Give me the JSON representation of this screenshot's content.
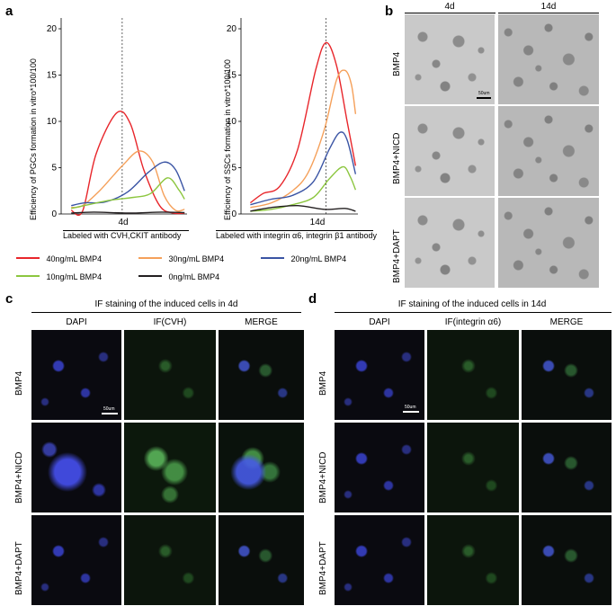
{
  "panels": {
    "a": "a",
    "b": "b",
    "c": "c",
    "d": "d"
  },
  "chart_data": [
    {
      "type": "line",
      "ylabel": "Efficiency of PGCs formation in vitro*100/100",
      "xlabel": "4d",
      "subtitle": "Labeled with CVH,CKIT antibody",
      "ylim": [
        0,
        20
      ],
      "yticks": [
        "0",
        "5",
        "10",
        "15",
        "20"
      ],
      "grid": false,
      "series": [
        {
          "name": "40ng/mL BMP4",
          "color": "#e8262b",
          "x": [
            0,
            0.1,
            0.22,
            0.4,
            0.52,
            0.64,
            0.78,
            0.9,
            1
          ],
          "values": [
            0.4,
            0.3,
            6.5,
            10.9,
            9.8,
            4.8,
            0.9,
            0.1,
            0.1
          ]
        },
        {
          "name": "30ng/mL BMP4",
          "color": "#f5a05a",
          "x": [
            0,
            0.1,
            0.25,
            0.45,
            0.6,
            0.72,
            0.82,
            0.92,
            1
          ],
          "values": [
            0.7,
            0.9,
            2.5,
            5.2,
            6.8,
            5.6,
            2.0,
            0.4,
            0.5
          ]
        },
        {
          "name": "20ng/mL BMP4",
          "color": "#3a54a4",
          "x": [
            0,
            0.12,
            0.3,
            0.5,
            0.68,
            0.82,
            0.92,
            1
          ],
          "values": [
            0.9,
            1.2,
            1.3,
            2.4,
            4.5,
            5.6,
            4.8,
            2.5
          ]
        },
        {
          "name": "10ng/mL BMP4",
          "color": "#8cc63f",
          "x": [
            0,
            0.15,
            0.35,
            0.55,
            0.7,
            0.85,
            0.95,
            1
          ],
          "values": [
            0.6,
            1.0,
            1.5,
            1.8,
            2.2,
            3.9,
            2.6,
            1.6
          ]
        },
        {
          "name": "0ng/mL BMP4",
          "color": "#231f20",
          "x": [
            0,
            0.2,
            0.5,
            0.8,
            1
          ],
          "values": [
            0.1,
            0.2,
            0.1,
            0.2,
            0.15
          ]
        }
      ],
      "vline": 0.45
    },
    {
      "type": "line",
      "ylabel": "Efficiency of SSCs formation in vitro*100/100",
      "xlabel": "14d",
      "subtitle": "Labeled with integrin α6, integrin β1 antibody",
      "ylim": [
        0,
        20
      ],
      "yticks": [
        "0",
        "5",
        "10",
        "15",
        "20"
      ],
      "grid": false,
      "series": [
        {
          "name": "40ng/mL BMP4",
          "color": "#e8262b",
          "x": [
            0,
            0.12,
            0.28,
            0.45,
            0.62,
            0.72,
            0.82,
            0.92,
            1
          ],
          "values": [
            1.2,
            2.2,
            3.0,
            7.0,
            15.5,
            18.5,
            16.0,
            10.0,
            5.2
          ]
        },
        {
          "name": "30ng/mL BMP4",
          "color": "#f5a05a",
          "x": [
            0,
            0.2,
            0.4,
            0.55,
            0.7,
            0.82,
            0.9,
            0.96,
            1
          ],
          "values": [
            0.7,
            1.2,
            2.5,
            4.5,
            9.0,
            14.5,
            15.5,
            14.0,
            10.8
          ]
        },
        {
          "name": "20ng/mL BMP4",
          "color": "#3a54a4",
          "x": [
            0,
            0.2,
            0.4,
            0.6,
            0.75,
            0.85,
            0.92,
            1
          ],
          "values": [
            1.0,
            1.6,
            2.0,
            3.5,
            7.0,
            8.8,
            8.0,
            4.3
          ]
        },
        {
          "name": "10ng/mL BMP4",
          "color": "#8cc63f",
          "x": [
            0,
            0.2,
            0.4,
            0.6,
            0.75,
            0.88,
            0.95,
            1
          ],
          "values": [
            0.3,
            0.5,
            1.0,
            1.8,
            3.8,
            5.1,
            4.0,
            2.6
          ]
        },
        {
          "name": "0ng/mL BMP4",
          "color": "#231f20",
          "x": [
            0,
            0.2,
            0.45,
            0.7,
            0.9,
            1
          ],
          "values": [
            0.3,
            0.7,
            0.9,
            0.5,
            0.6,
            0.3
          ]
        }
      ],
      "vline": 0.72
    }
  ],
  "legend": [
    {
      "label": "40ng/mL BMP4",
      "color": "#e8262b"
    },
    {
      "label": "30ng/mL BMP4",
      "color": "#f5a05a"
    },
    {
      "label": "20ng/mL BMP4",
      "color": "#3a54a4"
    },
    {
      "label": "10ng/mL BMP4",
      "color": "#8cc63f"
    },
    {
      "label": "0ng/mL BMP4",
      "color": "#231f20"
    }
  ],
  "panel_b": {
    "columns": [
      "4d",
      "14d"
    ],
    "rows": [
      "BMP4",
      "BMP4+NICD",
      "BMP4+DAPT"
    ],
    "scale": "50um"
  },
  "panel_c": {
    "title": "IF staining of the induced cells in 4d",
    "columns": [
      "DAPI",
      "IF(CVH)",
      "MERGE"
    ],
    "rows": [
      "BMP4",
      "BMP4+NICD",
      "BMP4+DAPT"
    ],
    "scale": "50um"
  },
  "panel_d": {
    "title": "IF staining of the induced cells in 14d",
    "columns": [
      "DAPI",
      "IF(integrin α6)",
      "MERGE"
    ],
    "rows": [
      "BMP4",
      "BMP4+NICD",
      "BMP4+DAPT"
    ],
    "scale": "50um"
  }
}
